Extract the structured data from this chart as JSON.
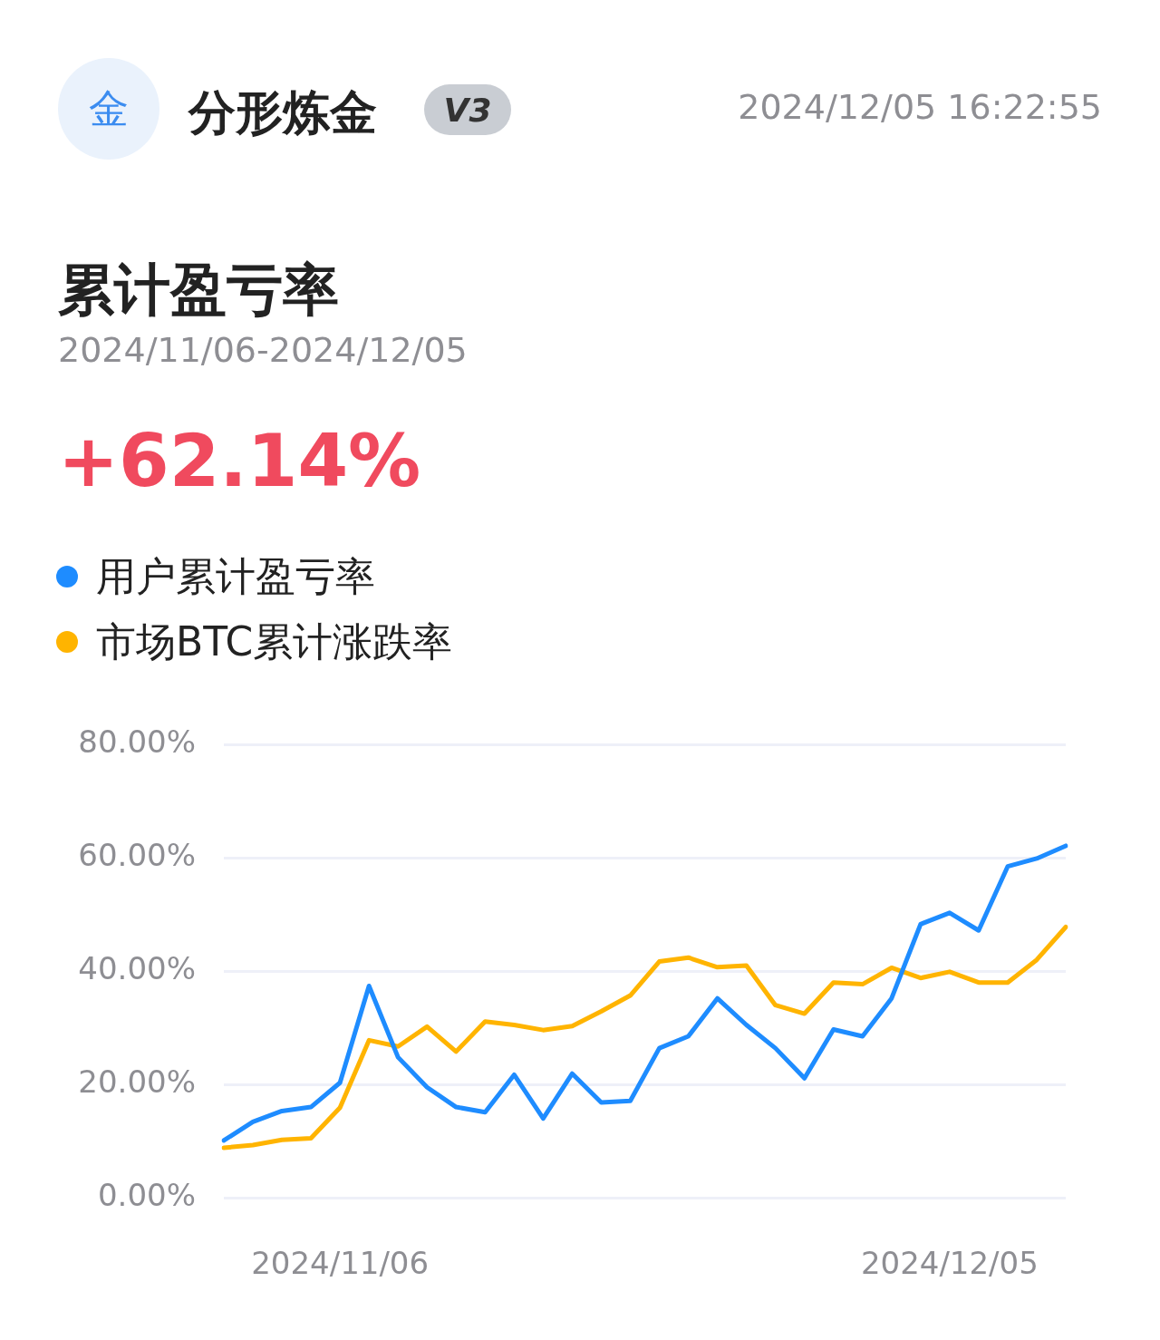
{
  "chart_data": {
    "type": "line",
    "title": "累计盈亏率",
    "subtitle": "2024/11/06-2024/12/05",
    "annotations": [
      "金",
      "分形炼金",
      "V3",
      "2024/12/05 16:22:55",
      "+62.14%"
    ],
    "categories": [
      null,
      null,
      null,
      null,
      "2024/11/06",
      null,
      null,
      null,
      null,
      null,
      null,
      null,
      null,
      null,
      null,
      null,
      null,
      null,
      null,
      null,
      null,
      null,
      null,
      null,
      null,
      "2024/12/05",
      null,
      null,
      null,
      null
    ],
    "series": [
      {
        "name": "用户累计盈亏率",
        "color": "#1e8cff",
        "values": [
          10.1,
          13.4,
          15.3,
          16.0,
          20.3,
          37.4,
          24.8,
          19.5,
          16.0,
          15.1,
          21.7,
          14.0,
          21.9,
          16.8,
          17.1,
          26.4,
          28.5,
          35.2,
          30.5,
          26.4,
          21.1,
          29.7,
          28.5,
          35.2,
          48.3,
          50.3,
          47.2,
          58.5,
          59.9,
          62.14
        ]
      },
      {
        "name": "市场BTC累计涨跌率",
        "color": "#ffb400",
        "values": [
          8.8,
          9.3,
          10.2,
          10.5,
          15.9,
          27.8,
          26.7,
          30.2,
          25.8,
          31.1,
          30.5,
          29.6,
          30.3,
          32.9,
          35.7,
          41.7,
          42.4,
          40.7,
          41.0,
          34.0,
          32.5,
          38.0,
          37.7,
          40.6,
          38.8,
          39.9,
          38.0,
          38.0,
          42.0,
          47.8
        ]
      }
    ],
    "ylim": [
      0,
      80
    ],
    "yticks": [
      {
        "value": 0,
        "label": "0.00%"
      },
      {
        "value": 20,
        "label": "20.00%"
      },
      {
        "value": 40,
        "label": "40.00%"
      },
      {
        "value": 60,
        "label": "60.00%"
      },
      {
        "value": 80,
        "label": "80.00%"
      }
    ],
    "grid": "y",
    "legend": "top left",
    "marker": "none",
    "line_style": "solid"
  }
}
